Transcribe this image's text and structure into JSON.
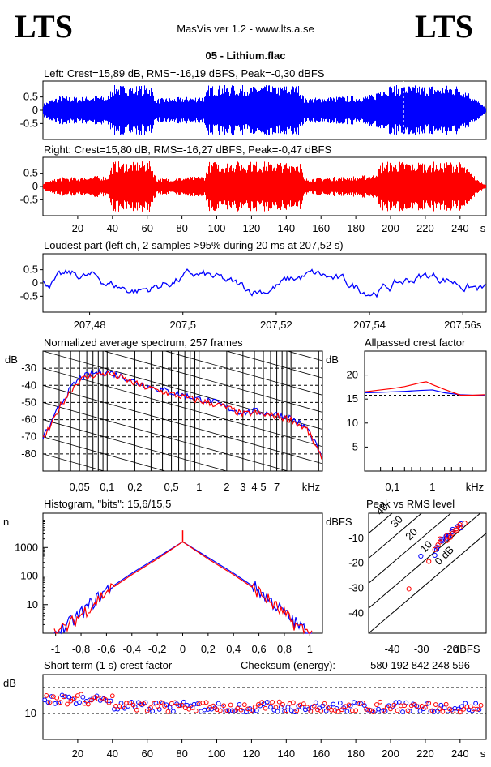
{
  "header": {
    "logo_left": "LTS",
    "logo_right": "LTS",
    "app_title": "MasVis ver 1.2 - www.lts.a.se",
    "file_name": "05 - Lithium.flac"
  },
  "chart_data": [
    {
      "id": "left_waveform",
      "type": "area",
      "title": "Left: Crest=15,89 dB, RMS=-16,19 dBFS, Peak=-0,30 dBFS",
      "y_ticks": [
        "0.5",
        "0",
        "-0.5"
      ],
      "ylim": [
        -1,
        1
      ],
      "xlim": [
        0,
        255
      ],
      "color": "#0000ff",
      "marker_time_s": 207.52,
      "envelope": {
        "x": [
          0,
          5,
          10,
          20,
          30,
          37,
          40,
          50,
          62,
          65,
          80,
          93,
          95,
          110,
          130,
          148,
          150,
          160,
          180,
          190,
          195,
          205,
          220,
          240,
          248,
          255
        ],
        "amp": [
          0.25,
          0.45,
          0.55,
          0.5,
          0.55,
          0.55,
          0.95,
          0.95,
          0.95,
          0.45,
          0.5,
          0.55,
          0.95,
          0.95,
          0.95,
          0.95,
          0.45,
          0.5,
          0.55,
          0.6,
          0.95,
          0.95,
          0.95,
          0.95,
          0.5,
          0.05
        ]
      }
    },
    {
      "id": "right_waveform",
      "type": "area",
      "title": "Right: Crest=15,80 dB, RMS=-16,27 dBFS, Peak=-0,47 dBFS",
      "y_ticks": [
        "0.5",
        "0",
        "-0.5"
      ],
      "ylim": [
        -1,
        1
      ],
      "xlim": [
        0,
        255
      ],
      "x_ticks": [
        "20",
        "40",
        "60",
        "80",
        "100",
        "120",
        "140",
        "160",
        "180",
        "200",
        "220",
        "240",
        "s"
      ],
      "color": "#ff0000",
      "envelope": {
        "x": [
          0,
          5,
          10,
          20,
          30,
          37,
          40,
          50,
          62,
          65,
          80,
          93,
          95,
          110,
          130,
          148,
          150,
          160,
          180,
          190,
          195,
          205,
          220,
          240,
          248,
          255
        ],
        "amp": [
          0.15,
          0.25,
          0.35,
          0.35,
          0.4,
          0.4,
          0.95,
          0.95,
          0.95,
          0.3,
          0.35,
          0.4,
          0.95,
          0.95,
          0.95,
          0.95,
          0.3,
          0.35,
          0.4,
          0.45,
          0.95,
          0.95,
          0.95,
          0.95,
          0.4,
          0.05
        ]
      }
    },
    {
      "id": "loudest_part",
      "type": "line",
      "title": "Loudest part (left  ch, 2 samples >95% during 20 ms at 207,52 s)",
      "y_ticks": [
        "0.5",
        "0",
        "-0.5"
      ],
      "ylim": [
        -1,
        1
      ],
      "xlim": [
        207.47,
        207.565
      ],
      "x_ticks": [
        "207,48",
        "207,5",
        "207,52",
        "207,54",
        "207,56s"
      ],
      "color": "#0000ff"
    },
    {
      "id": "avg_spectrum",
      "type": "line",
      "title": "Normalized average spectrum, 257 frames",
      "ylabel": "dB",
      "y_ticks": [
        "-30",
        "-40",
        "-50",
        "-60",
        "-70",
        "-80"
      ],
      "x_ticks": [
        "0,05",
        "0,1",
        "0,2",
        "0,5",
        "1",
        "2",
        "3",
        "4",
        "5",
        "7",
        "kHz"
      ],
      "xlim_khz": [
        0.02,
        22
      ],
      "ylim": [
        -90,
        -20
      ],
      "series": [
        {
          "color": "#0000ff",
          "x": [
            0.02,
            0.025,
            0.03,
            0.04,
            0.05,
            0.07,
            0.1,
            0.15,
            0.2,
            0.3,
            0.5,
            0.7,
            1,
            1.5,
            2,
            3,
            4,
            5,
            7,
            10,
            15,
            20,
            22
          ],
          "y": [
            -70,
            -62,
            -52,
            -42,
            -36,
            -33,
            -32,
            -35,
            -38,
            -41,
            -44,
            -46,
            -48,
            -50,
            -53,
            -56,
            -55,
            -56,
            -57,
            -59,
            -65,
            -78,
            -85
          ]
        },
        {
          "color": "#ff0000",
          "x": [
            0.02,
            0.025,
            0.03,
            0.04,
            0.05,
            0.07,
            0.1,
            0.15,
            0.2,
            0.3,
            0.5,
            0.7,
            1,
            1.5,
            2,
            3,
            4,
            5,
            7,
            10,
            15,
            20,
            22
          ],
          "y": [
            -71,
            -63,
            -53,
            -43,
            -37,
            -34,
            -33,
            -36,
            -39,
            -42,
            -45,
            -47,
            -49,
            -51,
            -53,
            -57,
            -56,
            -57,
            -58,
            -60,
            -66,
            -79,
            -86
          ]
        }
      ]
    },
    {
      "id": "allpassed_crest",
      "type": "line",
      "title": "Allpassed crest factor",
      "ylabel": "dB",
      "y_ticks": [
        "20",
        "15",
        "10",
        "5"
      ],
      "x_ticks": [
        "0,1",
        "1",
        "kHz"
      ],
      "ylim": [
        0,
        25
      ],
      "reference_db": 15.8,
      "series": [
        {
          "color": "#0000ff",
          "x": [
            0.02,
            0.05,
            0.1,
            0.2,
            0.5,
            1,
            2,
            5,
            10,
            20
          ],
          "y": [
            16.3,
            16.4,
            16.5,
            16.6,
            16.8,
            16.9,
            16.3,
            15.9,
            15.8,
            15.8
          ]
        },
        {
          "color": "#ff0000",
          "x": [
            0.02,
            0.05,
            0.1,
            0.2,
            0.5,
            0.7,
            1,
            2,
            5,
            10,
            20
          ],
          "y": [
            16.5,
            16.9,
            17.2,
            17.6,
            18.4,
            18.6,
            18.0,
            17.0,
            15.8,
            15.8,
            15.9
          ]
        }
      ]
    },
    {
      "id": "histogram",
      "type": "line",
      "title": "Histogram, \"bits\": 15,6/15,5",
      "ylabel": "n",
      "y_ticks": [
        "1000",
        "100",
        "10"
      ],
      "x_ticks": [
        "-1",
        "-0,8",
        "-0,6",
        "-0,4",
        "-0,2",
        "0",
        "0,2",
        "0,4",
        "0,6",
        "0,8",
        "1"
      ],
      "xlim": [
        -1.1,
        1.1
      ],
      "ylim_log10": [
        0,
        4.2
      ],
      "series": [
        {
          "color": "#0000ff",
          "x": [
            -1,
            -0.9,
            -0.8,
            -0.7,
            -0.6,
            -0.4,
            -0.2,
            0,
            0.2,
            0.4,
            0.6,
            0.7,
            0.8,
            0.9,
            1
          ],
          "log10n": [
            0,
            0.3,
            0.7,
            1.1,
            1.5,
            2.1,
            2.65,
            3.2,
            2.65,
            2.1,
            1.5,
            1.1,
            0.7,
            0.3,
            0
          ]
        },
        {
          "color": "#ff0000",
          "x": [
            -1,
            -0.9,
            -0.8,
            -0.7,
            -0.6,
            -0.4,
            -0.2,
            0,
            0.2,
            0.4,
            0.6,
            0.7,
            0.8,
            0.9,
            1
          ],
          "log10n": [
            0,
            0.25,
            0.65,
            1.05,
            1.45,
            2.05,
            2.6,
            3.2,
            2.6,
            2.05,
            1.45,
            1.05,
            0.65,
            0.25,
            0
          ]
        }
      ]
    },
    {
      "id": "peak_vs_rms",
      "type": "scatter",
      "title": "Peak vs RMS level",
      "ylabel": "dBFS",
      "xlabel": "dBFS",
      "x_ticks": [
        "-40",
        "-30",
        "-20"
      ],
      "y_ticks": [
        "-10",
        "-20",
        "-30",
        "-40"
      ],
      "xlim": [
        -48,
        -8
      ],
      "ylim": [
        -48,
        0
      ],
      "crest_lines": [
        "40",
        "30",
        "20",
        "10",
        "0 dB"
      ],
      "series": [
        {
          "color": "#0000ff",
          "x": [
            -26,
            -25,
            -24,
            -23,
            -22,
            -21,
            -20,
            -19,
            -18,
            -17,
            -16,
            -24,
            -22,
            -20,
            -30
          ],
          "y": [
            -16,
            -14,
            -12,
            -11,
            -10,
            -9,
            -8,
            -7,
            -6,
            -5,
            -5,
            -13,
            -10,
            -8,
            -18
          ]
        },
        {
          "color": "#ff0000",
          "x": [
            -25,
            -24,
            -23,
            -22,
            -21,
            -20,
            -19,
            -18,
            -17,
            -16,
            -15,
            -23,
            -21,
            -19,
            -28,
            -34
          ],
          "y": [
            -15,
            -13,
            -12,
            -10,
            -9,
            -8,
            -7,
            -6,
            -5,
            -5,
            -4,
            -11,
            -9,
            -7,
            -20,
            -30
          ]
        }
      ]
    },
    {
      "id": "short_term_crest",
      "type": "scatter",
      "title": "Short term (1 s) crest factor",
      "checksum_label": "Checksum (energy):",
      "checksum_value": "580 192 842 248 596",
      "ylabel": "dB",
      "y_ticks": [
        "10"
      ],
      "x_ticks": [
        "20",
        "40",
        "60",
        "80",
        "100",
        "120",
        "140",
        "160",
        "180",
        "200",
        "220",
        "240",
        "s"
      ],
      "xlim": [
        0,
        255
      ],
      "ylim": [
        0,
        25
      ],
      "series": [
        {
          "color": "#0000ff",
          "mean_db": 12.5
        },
        {
          "color": "#ff0000",
          "mean_db": 12.5
        }
      ]
    }
  ]
}
